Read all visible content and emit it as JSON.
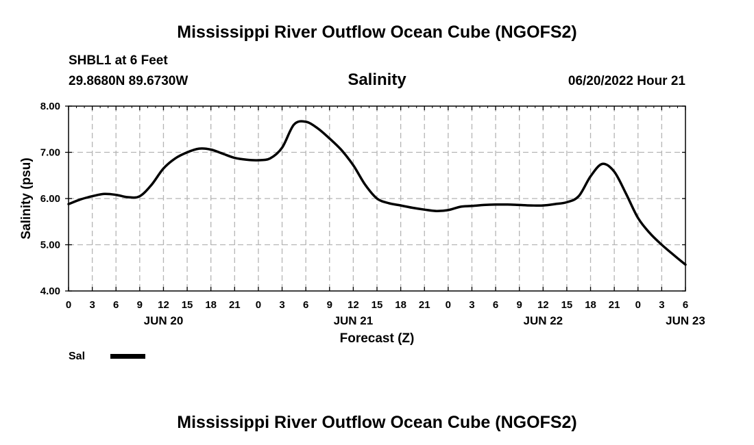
{
  "header": {
    "title": "Mississippi River Outflow Ocean Cube (NGOFS2)",
    "station": "SHBL1 at 6 Feet",
    "location": "29.8680N  89.6730W",
    "variable": "Salinity",
    "datetime": "06/20/2022 Hour 21"
  },
  "footer": {
    "title": "Mississippi River Outflow Ocean Cube (NGOFS2)"
  },
  "chart_data": {
    "type": "line",
    "title": "Salinity",
    "xlabel": "Forecast (Z)",
    "ylabel": "Salinity (psu)",
    "xlim": [
      0,
      78
    ],
    "ylim": [
      4.0,
      8.0
    ],
    "grid": true,
    "x_tick_values": [
      0,
      3,
      6,
      9,
      12,
      15,
      18,
      21,
      24,
      27,
      30,
      33,
      36,
      39,
      42,
      45,
      48,
      51,
      54,
      57,
      60,
      63,
      66,
      69,
      72,
      75,
      78
    ],
    "x_tick_labels": [
      "0",
      "3",
      "6",
      "9",
      "12",
      "15",
      "18",
      "21",
      "0",
      "3",
      "6",
      "9",
      "12",
      "15",
      "18",
      "21",
      "0",
      "3",
      "6",
      "9",
      "12",
      "15",
      "18",
      "21",
      "0",
      "3",
      "6"
    ],
    "date_labels": [
      {
        "x": 12,
        "label": "JUN 20"
      },
      {
        "x": 36,
        "label": "JUN 21"
      },
      {
        "x": 60,
        "label": "JUN 22"
      },
      {
        "x": 78,
        "label": "JUN 23"
      }
    ],
    "y_tick_values": [
      4,
      5,
      6,
      7,
      8
    ],
    "y_tick_labels": [
      "4.00",
      "5.00",
      "6.00",
      "7.00",
      "8.00"
    ],
    "legend": {
      "position": "bottom-left",
      "label": "Sal"
    },
    "series": [
      {
        "name": "Sal",
        "x": [
          0,
          1.5,
          3,
          4.5,
          6,
          7.5,
          9,
          10.5,
          12,
          13.5,
          15,
          16.5,
          18,
          19.5,
          21,
          22.5,
          24,
          25.5,
          27,
          28.5,
          30,
          31.5,
          33,
          34.5,
          36,
          37.5,
          39,
          40.5,
          42,
          43.5,
          45,
          46.5,
          48,
          49.5,
          51,
          52.5,
          54,
          55.5,
          57,
          58.5,
          60,
          61.5,
          63,
          64.5,
          66,
          67.5,
          69,
          70.5,
          72,
          73.5,
          75,
          76.5,
          78
        ],
        "values": [
          5.88,
          5.98,
          6.05,
          6.1,
          6.08,
          6.03,
          6.05,
          6.3,
          6.65,
          6.87,
          7.0,
          7.08,
          7.06,
          6.97,
          6.88,
          6.84,
          6.83,
          6.87,
          7.1,
          7.6,
          7.66,
          7.52,
          7.3,
          7.05,
          6.72,
          6.3,
          6.0,
          5.9,
          5.85,
          5.8,
          5.76,
          5.73,
          5.75,
          5.82,
          5.84,
          5.86,
          5.87,
          5.87,
          5.86,
          5.85,
          5.85,
          5.88,
          5.92,
          6.05,
          6.48,
          6.75,
          6.58,
          6.1,
          5.58,
          5.25,
          5.0,
          4.78,
          4.57
        ]
      }
    ]
  }
}
